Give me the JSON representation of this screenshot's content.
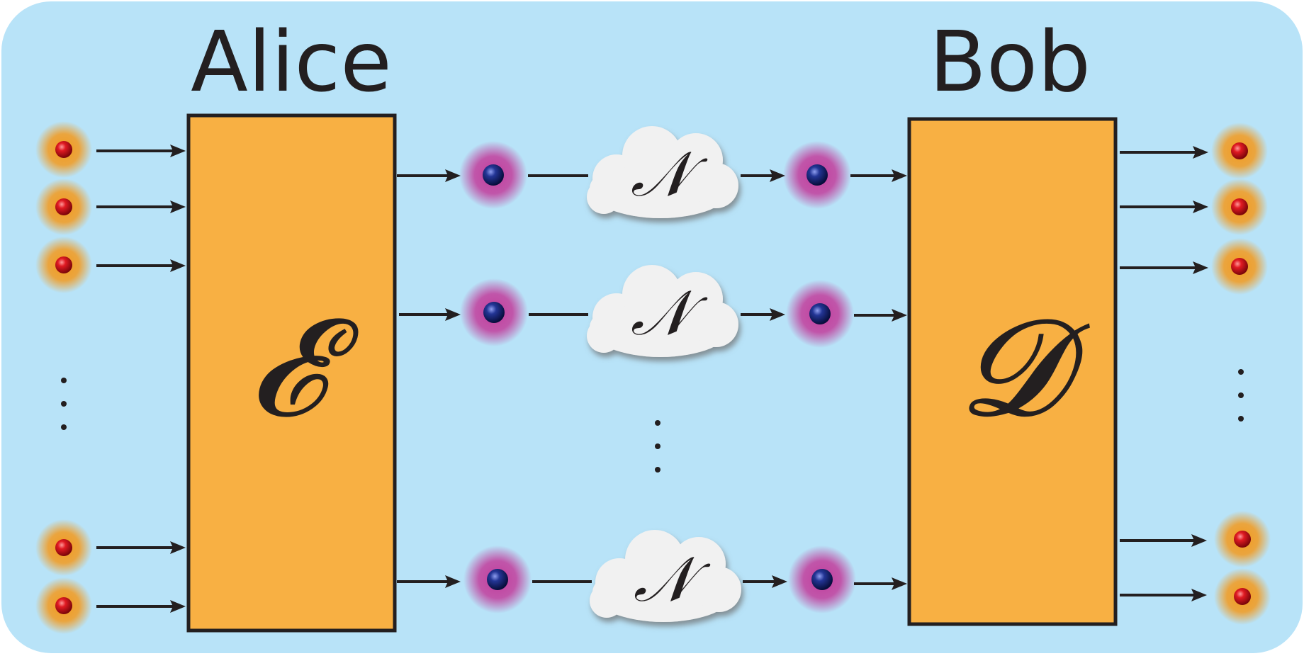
{
  "sender": {
    "label": "Alice",
    "operator": "𝓔"
  },
  "receiver": {
    "label": "Bob",
    "operator": "𝓓"
  },
  "channel": {
    "symbol": "𝒩"
  },
  "colors": {
    "background": "#b8e3f8",
    "block_fill": "#f8b043",
    "outline": "#231f20",
    "input_qubit": "#d0121c",
    "input_glow": "#f39a1e",
    "carrier_qubit": "#1c2a78",
    "carrier_glow": "#c23d9c",
    "cloud": "#f1f1f1"
  },
  "icons": {
    "input_qubit": "red-sphere-icon",
    "carrier_qubit": "blue-sphere-icon",
    "channel": "cloud-icon",
    "ellipsis": "vertical-ellipsis-icon"
  }
}
